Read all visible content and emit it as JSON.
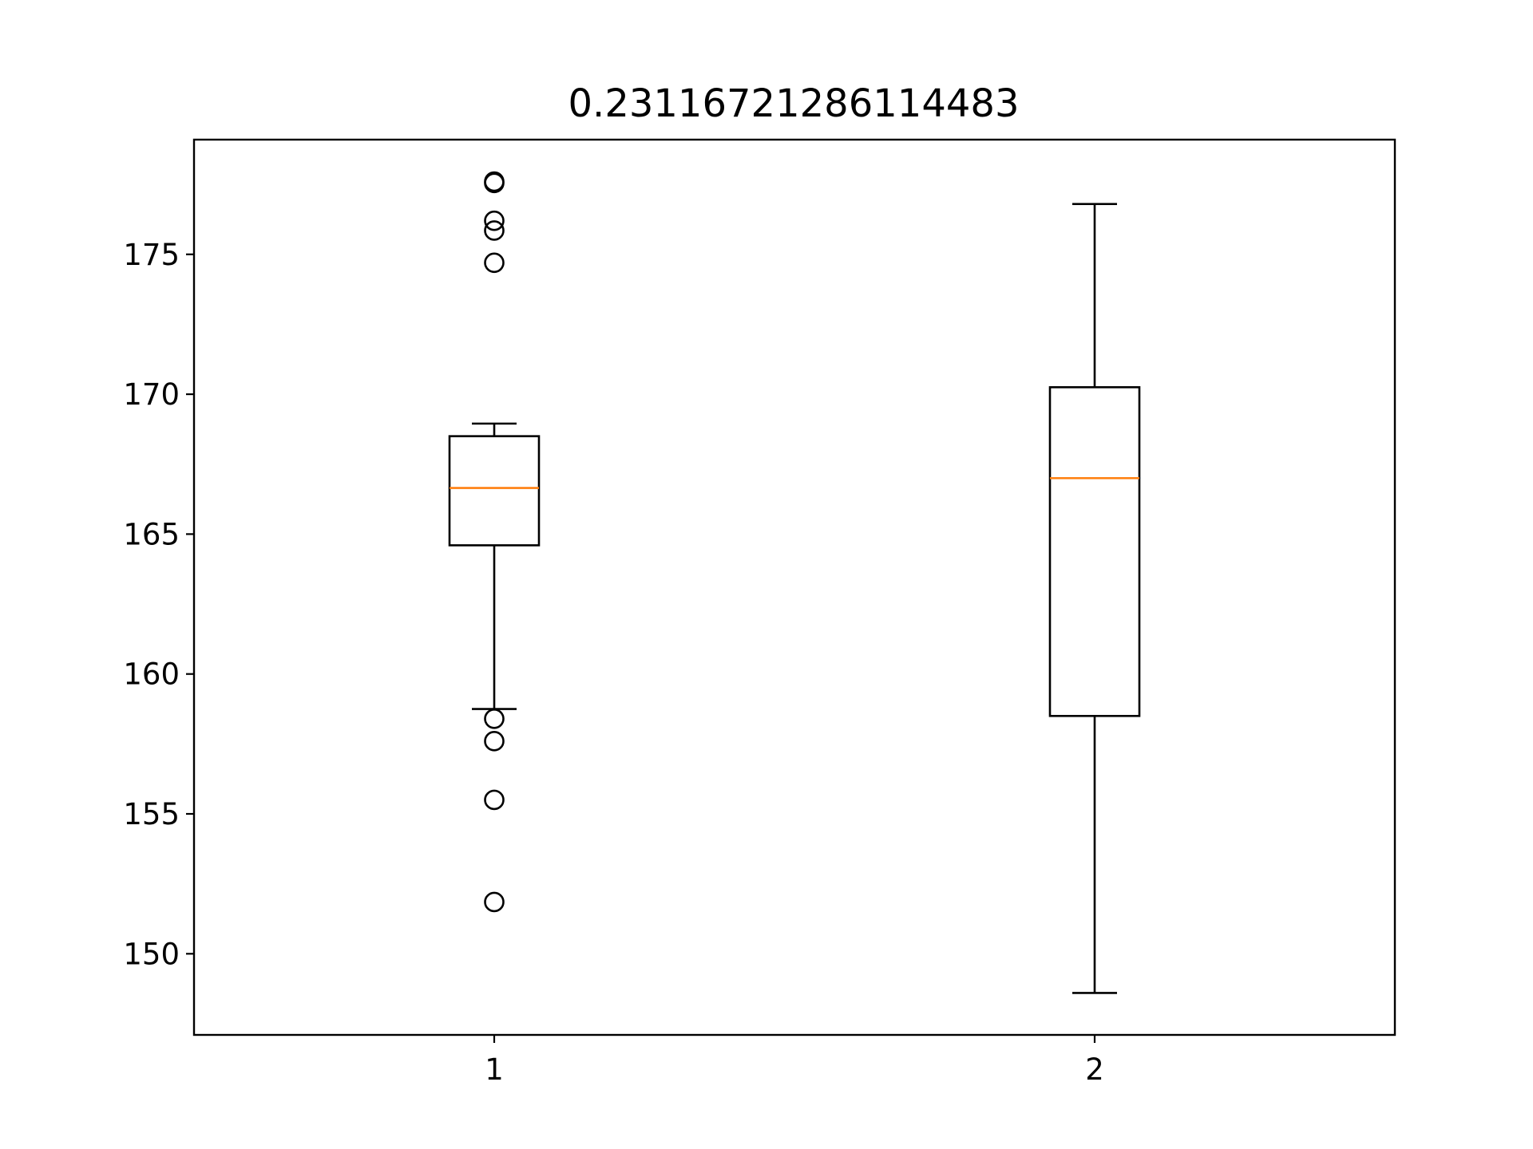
{
  "chart_data": {
    "type": "boxplot",
    "title": "0.23116721286114483",
    "xlabel": "",
    "ylabel": "",
    "categories": [
      "1",
      "2"
    ],
    "ylim": [
      147.1,
      179.1
    ],
    "yticks": [
      150,
      155,
      160,
      165,
      170,
      175
    ],
    "grid": false,
    "boxes": [
      {
        "category": "1",
        "whisker_low": 158.75,
        "q1": 164.6,
        "median": 166.65,
        "q3": 168.5,
        "whisker_high": 168.95,
        "fliers": [
          177.6,
          177.55,
          176.2,
          175.85,
          174.7,
          158.4,
          157.6,
          155.5,
          151.85
        ]
      },
      {
        "category": "2",
        "whisker_low": 148.6,
        "q1": 158.5,
        "median": 167.0,
        "q3": 170.25,
        "whisker_high": 176.8,
        "fliers": []
      }
    ],
    "colors": {
      "median": "#ff7f0e",
      "box": "#000000",
      "axes": "#000000"
    }
  }
}
